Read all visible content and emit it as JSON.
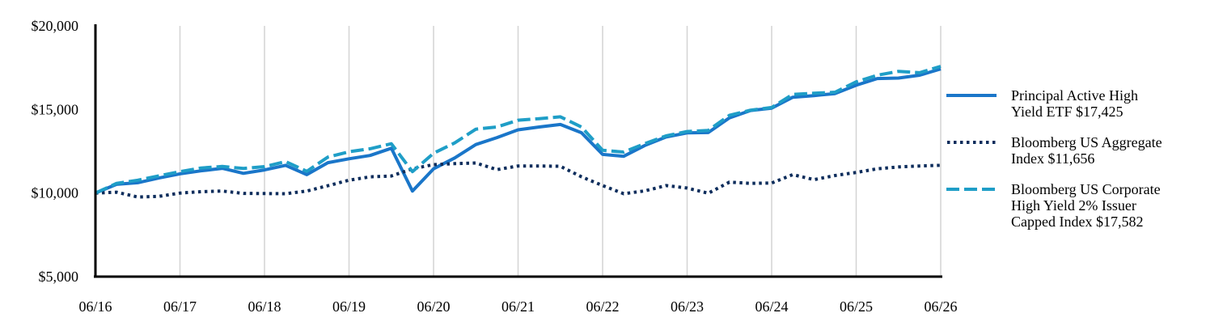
{
  "chart_data": {
    "type": "line",
    "title": "",
    "xlabel": "",
    "ylabel": "",
    "ylim": [
      5000,
      20000
    ],
    "y_ticks": [
      5000,
      10000,
      15000,
      20000
    ],
    "y_tick_labels": [
      "$5,000",
      "$10,000",
      "$15,000",
      "$20,000"
    ],
    "x_range": [
      "2016-06",
      "2026-06"
    ],
    "x_tick_labels": [
      "06/16",
      "06/17",
      "06/18",
      "06/19",
      "06/20",
      "06/21",
      "06/22",
      "06/23",
      "06/24",
      "06/25",
      "06/26"
    ],
    "grid": "vertical",
    "legend_placement": "right",
    "x": [
      "2016-06",
      "2016-09",
      "2016-12",
      "2017-03",
      "2017-06",
      "2017-09",
      "2017-12",
      "2018-03",
      "2018-06",
      "2018-09",
      "2018-12",
      "2019-03",
      "2019-06",
      "2019-09",
      "2019-12",
      "2020-03",
      "2020-06",
      "2020-09",
      "2020-12",
      "2021-03",
      "2021-06",
      "2021-09",
      "2021-12",
      "2022-03",
      "2022-06",
      "2022-09",
      "2022-12",
      "2023-03",
      "2023-06",
      "2023-09",
      "2023-12",
      "2024-03",
      "2024-06",
      "2024-09",
      "2024-12",
      "2025-03",
      "2025-06",
      "2025-09",
      "2025-12",
      "2026-03",
      "2026-06"
    ],
    "series": [
      {
        "name": "Principal Active High Yield ETF $17,425",
        "color": "#1a76c9",
        "style": "solid",
        "values": [
          10000,
          10520,
          10620,
          10900,
          11150,
          11330,
          11480,
          11180,
          11380,
          11660,
          11100,
          11820,
          12050,
          12250,
          12680,
          10120,
          11450,
          12100,
          12900,
          13320,
          13780,
          13950,
          14100,
          13610,
          12310,
          12200,
          12850,
          13350,
          13600,
          13620,
          14500,
          14940,
          15080,
          15730,
          15830,
          15950,
          16450,
          16850,
          16880,
          17050,
          17425
        ]
      },
      {
        "name": "Bloomberg US Aggregate Index $11,656",
        "color": "#0d2d5c",
        "style": "dotted",
        "values": [
          10000,
          10050,
          9760,
          9800,
          10000,
          10080,
          10120,
          9980,
          9970,
          9960,
          10120,
          10440,
          10770,
          10970,
          11020,
          11450,
          11700,
          11760,
          11800,
          11400,
          11620,
          11620,
          11600,
          10970,
          10450,
          9960,
          10130,
          10450,
          10300,
          9990,
          10650,
          10580,
          10600,
          11100,
          10800,
          11050,
          11230,
          11450,
          11560,
          11620,
          11656
        ]
      },
      {
        "name": "Bloomberg US Corporate High Yield 2% Issuer Capped Index $17,582",
        "color": "#1f9ec7",
        "style": "dashed",
        "values": [
          10000,
          10580,
          10770,
          11030,
          11280,
          11500,
          11590,
          11470,
          11580,
          11880,
          11300,
          12150,
          12470,
          12650,
          12950,
          11280,
          12380,
          13000,
          13820,
          13950,
          14360,
          14450,
          14560,
          13950,
          12560,
          12450,
          12960,
          13420,
          13680,
          13750,
          14650,
          14960,
          15120,
          15900,
          15970,
          16030,
          16650,
          17050,
          17280,
          17200,
          17582
        ]
      }
    ]
  },
  "legend": {
    "items": [
      {
        "text": "Principal Active High\nYield ETF $17,425"
      },
      {
        "text": "Bloomberg US Aggregate\nIndex $11,656"
      },
      {
        "text": "Bloomberg US Corporate\nHigh Yield 2% Issuer\nCapped Index $17,582"
      }
    ]
  }
}
